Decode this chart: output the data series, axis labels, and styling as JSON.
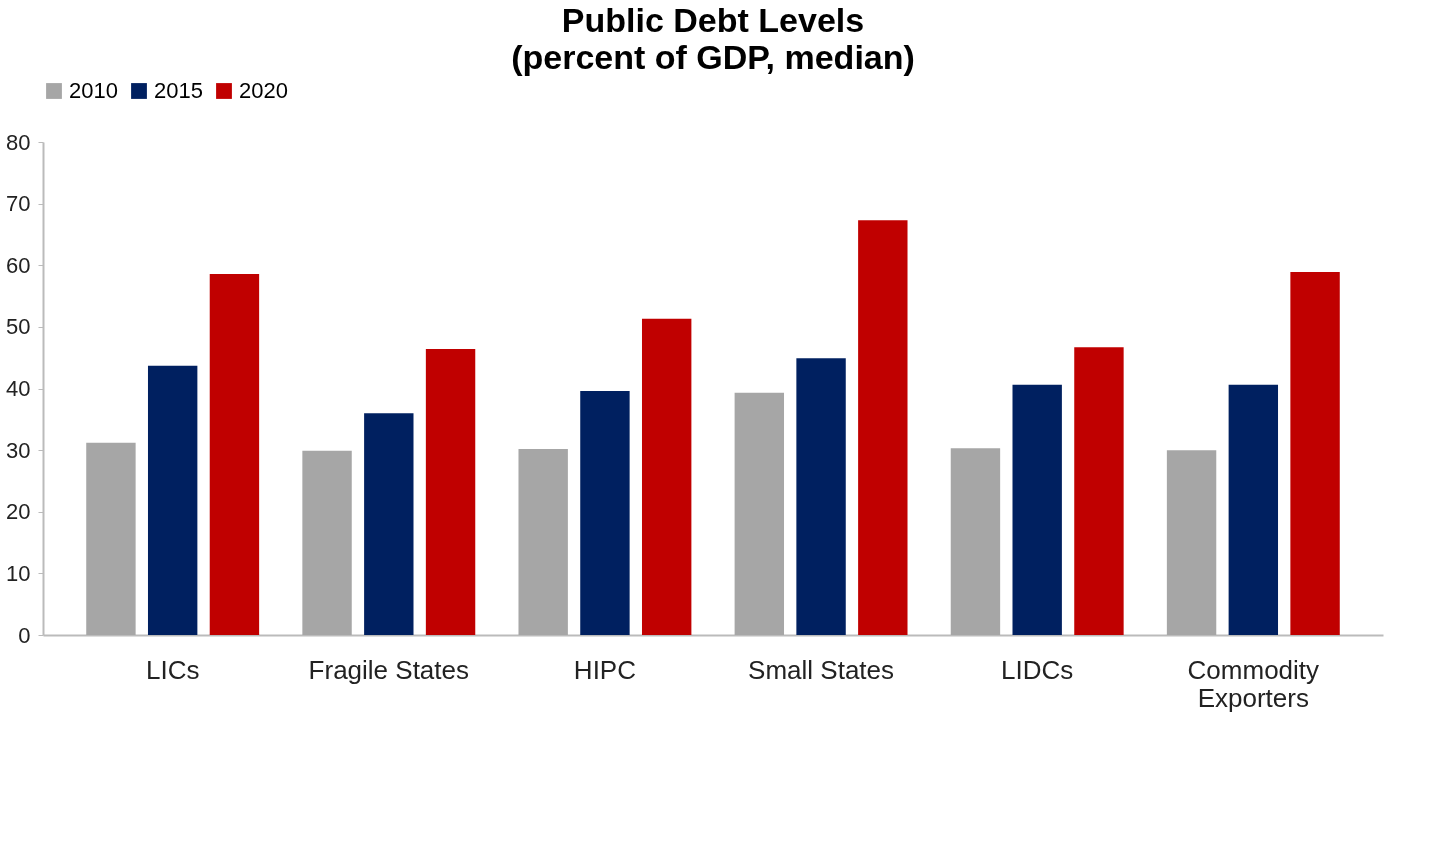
{
  "chart_data": {
    "type": "bar",
    "title": "Public Debt Levels",
    "subtitle": "(percent of GDP, median)",
    "categories": [
      "LICs",
      "Fragile States",
      "HIPC",
      "Small States",
      "LIDCs",
      "Commodity Exporters"
    ],
    "series": [
      {
        "name": "2010",
        "color": "#a6a6a6",
        "values": [
          31.2,
          29.9,
          30.2,
          39.3,
          30.3,
          30.0
        ]
      },
      {
        "name": "2015",
        "color": "#002060",
        "values": [
          43.7,
          36.0,
          39.6,
          44.9,
          40.6,
          40.6
        ]
      },
      {
        "name": "2020",
        "color": "#c00000",
        "values": [
          58.6,
          46.4,
          51.3,
          67.3,
          46.7,
          58.9
        ]
      }
    ],
    "ylim": [
      0,
      80
    ],
    "yticks": [
      0,
      10,
      20,
      30,
      40,
      50,
      60,
      70,
      80
    ],
    "grid": false,
    "legend": "top"
  }
}
